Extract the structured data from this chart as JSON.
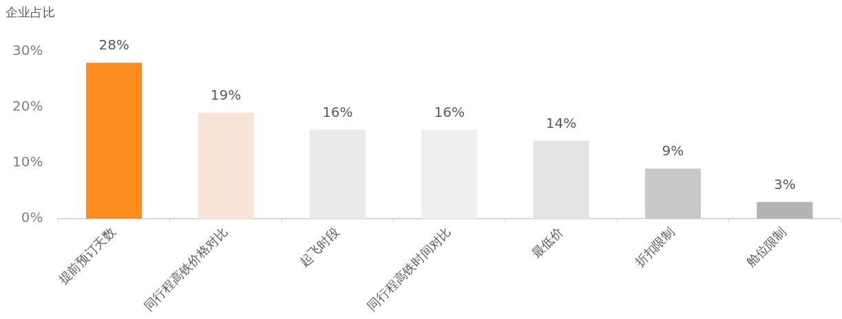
{
  "chart_data": {
    "type": "bar",
    "ylabel": "企业占比",
    "categories": [
      "提前预订天数",
      "同行程高铁价格对比",
      "起飞时段",
      "同行程高铁时间对比",
      "最低价",
      "折扣限制",
      "舱位限制"
    ],
    "values": [
      28,
      19,
      16,
      16,
      14,
      9,
      3
    ],
    "colors": [
      "#ff8c1f",
      "#fae4d8",
      "#ebebeb",
      "#efefef",
      "#e4e4e4",
      "#c8c8c8",
      "#b4b4b4"
    ],
    "value_labels": [
      "28%",
      "19%",
      "16%",
      "16%",
      "14%",
      "9%",
      "3%"
    ],
    "ylim": [
      0,
      30
    ],
    "yticks": [
      {
        "value": 0,
        "label": "0%"
      },
      {
        "value": 10,
        "label": "10%"
      },
      {
        "value": 20,
        "label": "20%"
      },
      {
        "value": 30,
        "label": "30%"
      }
    ],
    "grid": false,
    "legend": false
  }
}
